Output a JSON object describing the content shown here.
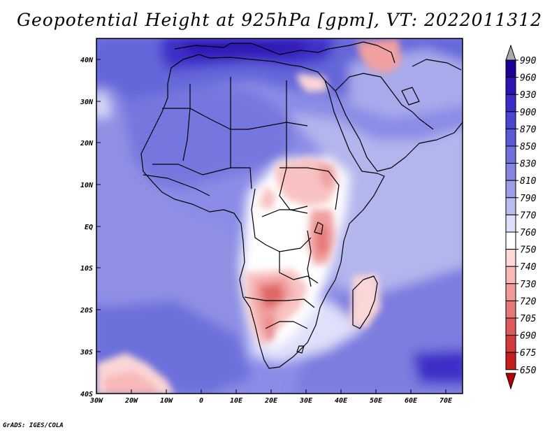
{
  "title": "Geopotential Height at 925hPa [gpm], VT: 2022011312",
  "credit": "GrADS: IGES/COLA",
  "axes": {
    "lon_labels": [
      "30W",
      "20W",
      "10W",
      "0",
      "10E",
      "20E",
      "30E",
      "40E",
      "50E",
      "60E",
      "70E"
    ],
    "lat_labels": [
      "40N",
      "30N",
      "20N",
      "10N",
      "EQ",
      "10S",
      "20S",
      "30S",
      "40S"
    ]
  },
  "colorbar": {
    "levels": [
      "990",
      "960",
      "930",
      "900",
      "870",
      "850",
      "830",
      "810",
      "790",
      "770",
      "760",
      "750",
      "740",
      "730",
      "720",
      "705",
      "690",
      "675",
      "650"
    ],
    "colors": [
      "#aaaaaa",
      "#1e0096",
      "#2d14b4",
      "#3c2dc8",
      "#4b46d2",
      "#5a5ad7",
      "#6e70dc",
      "#8585e0",
      "#9d9ee8",
      "#babcef",
      "#dedffa",
      "#ffffff",
      "#ffd8d8",
      "#f8b8b8",
      "#f09a9a",
      "#e67878",
      "#dc5a5a",
      "#d23c3c",
      "#c81e1e",
      "#b40000"
    ]
  }
}
